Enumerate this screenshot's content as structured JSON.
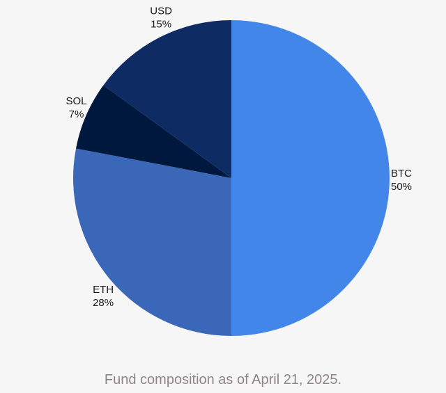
{
  "chart_data": {
    "type": "pie",
    "title": "",
    "slices": [
      {
        "label": "BTC",
        "value": 50,
        "display": "50%",
        "color": "#4186e8"
      },
      {
        "label": "ETH",
        "value": 28,
        "display": "28%",
        "color": "#3b67b8"
      },
      {
        "label": "SOL",
        "value": 7,
        "display": "7%",
        "color": "#00183d"
      },
      {
        "label": "USD",
        "value": 15,
        "display": "15%",
        "color": "#0e2c63"
      }
    ],
    "start_angle_deg": 0,
    "direction": "clockwise"
  },
  "caption": "Fund composition as of April 21, 2025."
}
